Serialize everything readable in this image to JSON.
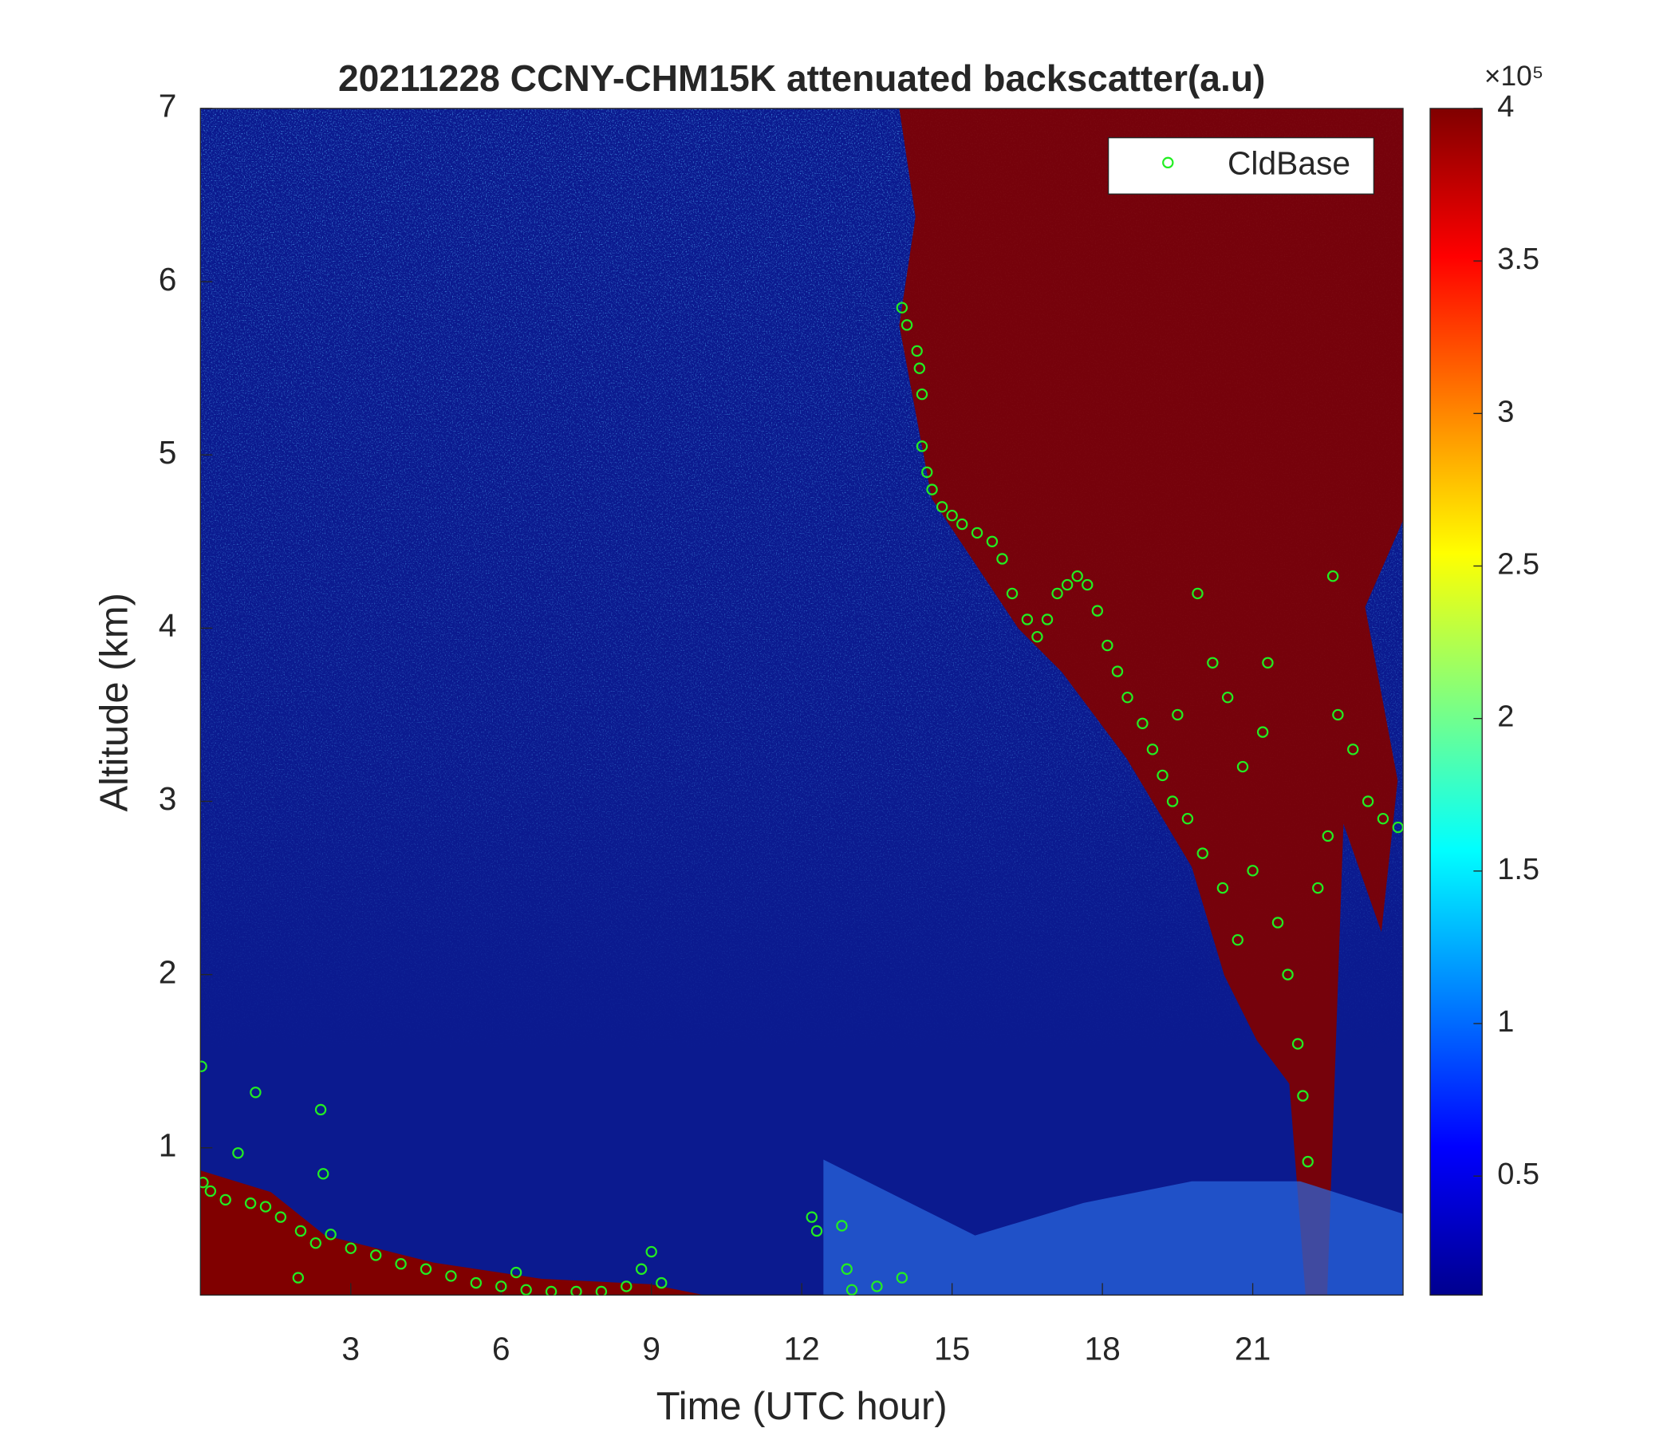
{
  "chart_data": {
    "type": "scatter",
    "title": "20211228 CCNY-CHM15K attenuated backscatter(a.u)",
    "x_label": "Time (UTC hour)",
    "y_label": "Altitude (km)",
    "xlim": [
      0,
      24
    ],
    "xticks": [
      3,
      6,
      9,
      12,
      15,
      18,
      21
    ],
    "ylim": [
      0.15,
      7
    ],
    "yticks": [
      1,
      2,
      3,
      4,
      5,
      6,
      7
    ],
    "legend": "upper right",
    "colorbar": {
      "label": "×10⁵",
      "lim": [
        0.11,
        4
      ],
      "ticks": [
        0.5,
        1,
        1.5,
        2,
        2.5,
        3,
        3.5,
        4
      ]
    },
    "series": [
      {
        "name": "CldBase",
        "color": "#22ee22",
        "x": [
          0.02,
          0.05,
          0.2,
          0.5,
          1,
          1.3,
          1.6,
          2,
          2.3,
          2.4,
          2.45,
          2.6,
          3,
          3.5,
          4,
          4.5,
          5,
          5.5,
          6,
          6.3,
          6.5,
          7,
          7.5,
          8,
          8.5,
          8.8,
          9,
          9.2,
          1.1,
          0.75,
          1.95,
          12.2,
          12.3,
          12.8,
          12.9,
          13,
          13.5,
          14,
          14,
          14.1,
          14.3,
          14.35,
          14.4,
          14.4,
          14.5,
          14.6,
          14.8,
          15,
          15.2,
          15.5,
          15.8,
          16,
          16.2,
          16.5,
          16.7,
          16.9,
          17.1,
          17.3,
          17.5,
          17.7,
          17.9,
          18.1,
          18.3,
          18.5,
          18.8,
          19,
          19.2,
          19.4,
          19.5,
          19.7,
          19.9,
          20,
          20.2,
          20.4,
          20.5,
          20.7,
          20.8,
          21,
          21.2,
          21.3,
          21.5,
          21.7,
          21.9,
          22,
          22.1,
          22.3,
          22.5,
          22.6,
          22.7,
          23,
          23.3,
          23.6,
          23.9
        ],
        "values": [
          1.47,
          0.8,
          0.75,
          0.7,
          0.68,
          0.66,
          0.6,
          0.52,
          0.45,
          1.22,
          0.85,
          0.5,
          0.42,
          0.38,
          0.33,
          0.3,
          0.26,
          0.22,
          0.2,
          0.28,
          0.18,
          0.17,
          0.17,
          0.17,
          0.2,
          0.3,
          0.4,
          0.22,
          1.32,
          0.97,
          0.25,
          0.6,
          0.52,
          0.55,
          0.3,
          0.18,
          0.2,
          0.25,
          5.85,
          5.75,
          5.6,
          5.5,
          5.35,
          5.05,
          4.9,
          4.8,
          4.7,
          4.65,
          4.6,
          4.55,
          4.5,
          4.4,
          4.2,
          4.05,
          3.95,
          4.05,
          4.2,
          4.25,
          4.3,
          4.25,
          4.1,
          3.9,
          3.75,
          3.6,
          3.45,
          3.3,
          3.15,
          3.0,
          3.5,
          2.9,
          4.2,
          2.7,
          3.8,
          2.5,
          3.6,
          2.2,
          3.2,
          2.6,
          3.4,
          3.8,
          2.3,
          2.0,
          1.6,
          1.3,
          0.92,
          2.5,
          2.8,
          4.3,
          3.5,
          3.3,
          3.0,
          2.9,
          2.85
        ]
      }
    ]
  }
}
